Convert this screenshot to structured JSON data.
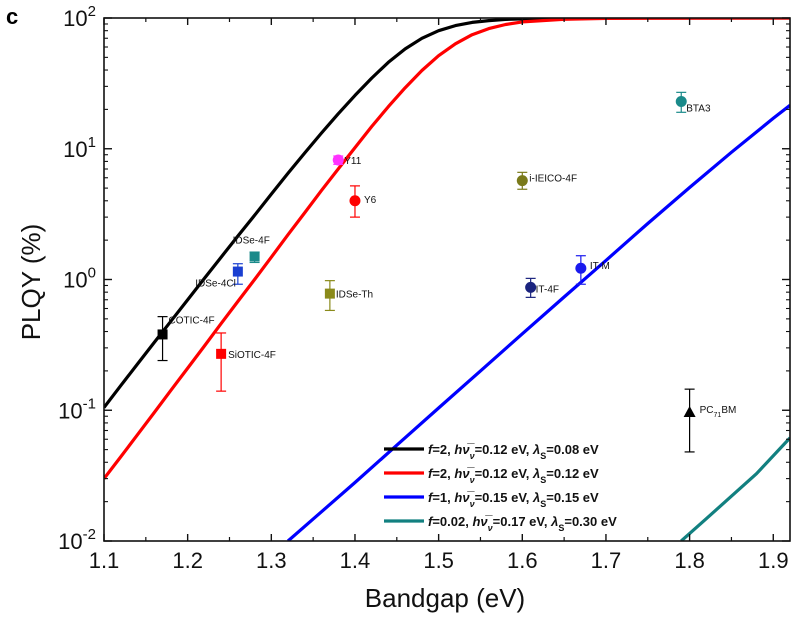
{
  "panel_label": "c",
  "chart_data": {
    "type": "scatter",
    "xlabel": "Bandgap (eV)",
    "ylabel": "PLQY (%)",
    "xlim": [
      1.1,
      1.92
    ],
    "ylim": [
      0.01,
      100
    ],
    "yscale": "log",
    "grid": false,
    "legend_position": "bottom-center",
    "x_ticks": [
      "1.1",
      "1.2",
      "1.3",
      "1.4",
      "1.5",
      "1.6",
      "1.7",
      "1.8",
      "1.9"
    ],
    "y_ticks": [
      {
        "base": "10",
        "exp": "-2",
        "value": 0.01
      },
      {
        "base": "10",
        "exp": "-1",
        "value": 0.1
      },
      {
        "base": "10",
        "exp": "0",
        "value": 1
      },
      {
        "base": "10",
        "exp": "1",
        "value": 10
      },
      {
        "base": "10",
        "exp": "2",
        "value": 100
      }
    ],
    "points": [
      {
        "name": "COTIC-4F",
        "x": 1.17,
        "y": 0.38,
        "err_low": 0.24,
        "err_high": 0.52,
        "color": "#000000",
        "marker": "square"
      },
      {
        "name": "SiOTIC-4F",
        "x": 1.24,
        "y": 0.27,
        "err_low": 0.14,
        "err_high": 0.39,
        "color": "#ff0000",
        "marker": "square"
      },
      {
        "name": "IDSe-4Cl",
        "x": 1.26,
        "y": 1.15,
        "err_low": 0.92,
        "err_high": 1.32,
        "color": "#1a3fd1",
        "marker": "square"
      },
      {
        "name": "IDSe-4F",
        "x": 1.28,
        "y": 1.5,
        "err_low": 1.35,
        "err_high": 1.62,
        "color": "#1a8a8a",
        "marker": "square"
      },
      {
        "name": "IDSe-Th",
        "x": 1.37,
        "y": 0.78,
        "err_low": 0.58,
        "err_high": 0.98,
        "color": "#8a8a1a",
        "marker": "square"
      },
      {
        "name": "Y11",
        "x": 1.38,
        "y": 8.2,
        "err_low": 7.6,
        "err_high": 8.8,
        "color": "#ff33ff",
        "marker": "circle"
      },
      {
        "name": "Y6",
        "x": 1.4,
        "y": 4.0,
        "err_low": 3.0,
        "err_high": 5.2,
        "color": "#ff0000",
        "marker": "circle"
      },
      {
        "name": "i-IEICO-4F",
        "x": 1.6,
        "y": 5.7,
        "err_low": 4.9,
        "err_high": 6.6,
        "color": "#7a7a1a",
        "marker": "circle"
      },
      {
        "name": "IT-4F",
        "x": 1.61,
        "y": 0.87,
        "err_low": 0.73,
        "err_high": 1.02,
        "color": "#1a237e",
        "marker": "circle"
      },
      {
        "name": "IT-M",
        "x": 1.67,
        "y": 1.22,
        "err_low": 0.92,
        "err_high": 1.52,
        "color": "#1a1aee",
        "marker": "circle"
      },
      {
        "name": "BTA3",
        "x": 1.79,
        "y": 23,
        "err_low": 19,
        "err_high": 27,
        "color": "#1a8a8a",
        "marker": "circle"
      },
      {
        "name": "PC",
        "name_sub": "71",
        "name_tail": "BM",
        "x": 1.8,
        "y": 0.097,
        "err_low": 0.048,
        "err_high": 0.145,
        "color": "#000000",
        "marker": "triangle"
      }
    ],
    "series": [
      {
        "color": "#000000",
        "f": "2",
        "hnu": "0.12 eV",
        "lambda": "0.08 eV",
        "x": [
          1.1,
          1.12,
          1.14,
          1.16,
          1.18,
          1.2,
          1.22,
          1.24,
          1.26,
          1.28,
          1.3,
          1.32,
          1.34,
          1.36,
          1.38,
          1.4,
          1.42,
          1.44,
          1.46,
          1.48,
          1.5,
          1.52,
          1.54,
          1.56,
          1.58,
          1.6,
          1.65,
          1.7,
          1.8,
          1.92
        ],
        "y": [
          0.105,
          0.154,
          0.226,
          0.33,
          0.48,
          0.7,
          1.02,
          1.48,
          2.15,
          3.1,
          4.5,
          6.5,
          9.3,
          13.2,
          18.5,
          25.6,
          34.7,
          45.8,
          58.0,
          70.0,
          80.0,
          87.5,
          92.5,
          95.6,
          97.5,
          98.5,
          99.6,
          99.9,
          100,
          100
        ]
      },
      {
        "color": "#ff0000",
        "f": "2",
        "hnu": "0.12 eV",
        "lambda": "0.12 eV",
        "x": [
          1.1,
          1.12,
          1.14,
          1.16,
          1.18,
          1.2,
          1.22,
          1.24,
          1.26,
          1.28,
          1.3,
          1.32,
          1.34,
          1.36,
          1.38,
          1.4,
          1.42,
          1.44,
          1.46,
          1.48,
          1.5,
          1.52,
          1.54,
          1.56,
          1.58,
          1.6,
          1.65,
          1.7,
          1.8,
          1.92
        ],
        "y": [
          0.03,
          0.044,
          0.065,
          0.096,
          0.142,
          0.21,
          0.31,
          0.46,
          0.68,
          1.0,
          1.48,
          2.2,
          3.25,
          4.8,
          7.0,
          10.2,
          14.8,
          21.0,
          29.3,
          39.7,
          51.5,
          63.5,
          74.5,
          83.0,
          89.2,
          93.3,
          97.8,
          99.3,
          99.9,
          100
        ]
      },
      {
        "color": "#0000ff",
        "f": "1",
        "hnu": "0.15 eV",
        "lambda": "0.15 eV",
        "x": [
          1.32,
          1.35,
          1.4,
          1.45,
          1.5,
          1.55,
          1.6,
          1.65,
          1.7,
          1.75,
          1.8,
          1.85,
          1.9,
          1.92
        ],
        "y": [
          0.01,
          0.0147,
          0.028,
          0.054,
          0.104,
          0.2,
          0.384,
          0.735,
          1.4,
          2.68,
          5.05,
          9.4,
          17.1,
          21.5
        ]
      },
      {
        "color": "#128080",
        "f": "0.02",
        "hnu": "0.17 eV",
        "lambda": "0.30 eV",
        "x": [
          1.79,
          1.82,
          1.85,
          1.88,
          1.92
        ],
        "y": [
          0.01,
          0.0148,
          0.022,
          0.0327,
          0.0615
        ]
      }
    ],
    "legend": [
      {
        "color": "#000000",
        "f": "2",
        "hnu": "0.12 eV",
        "lambda": "0.08 eV"
      },
      {
        "color": "#ff0000",
        "f": "2",
        "hnu": "0.12 eV",
        "lambda": "0.12 eV"
      },
      {
        "color": "#0000ff",
        "f": "1",
        "hnu": "0.15 eV",
        "lambda": "0.15 eV"
      },
      {
        "color": "#128080",
        "f": "0.02",
        "hnu": "0.17 eV",
        "lambda": "0.30 eV"
      }
    ]
  }
}
